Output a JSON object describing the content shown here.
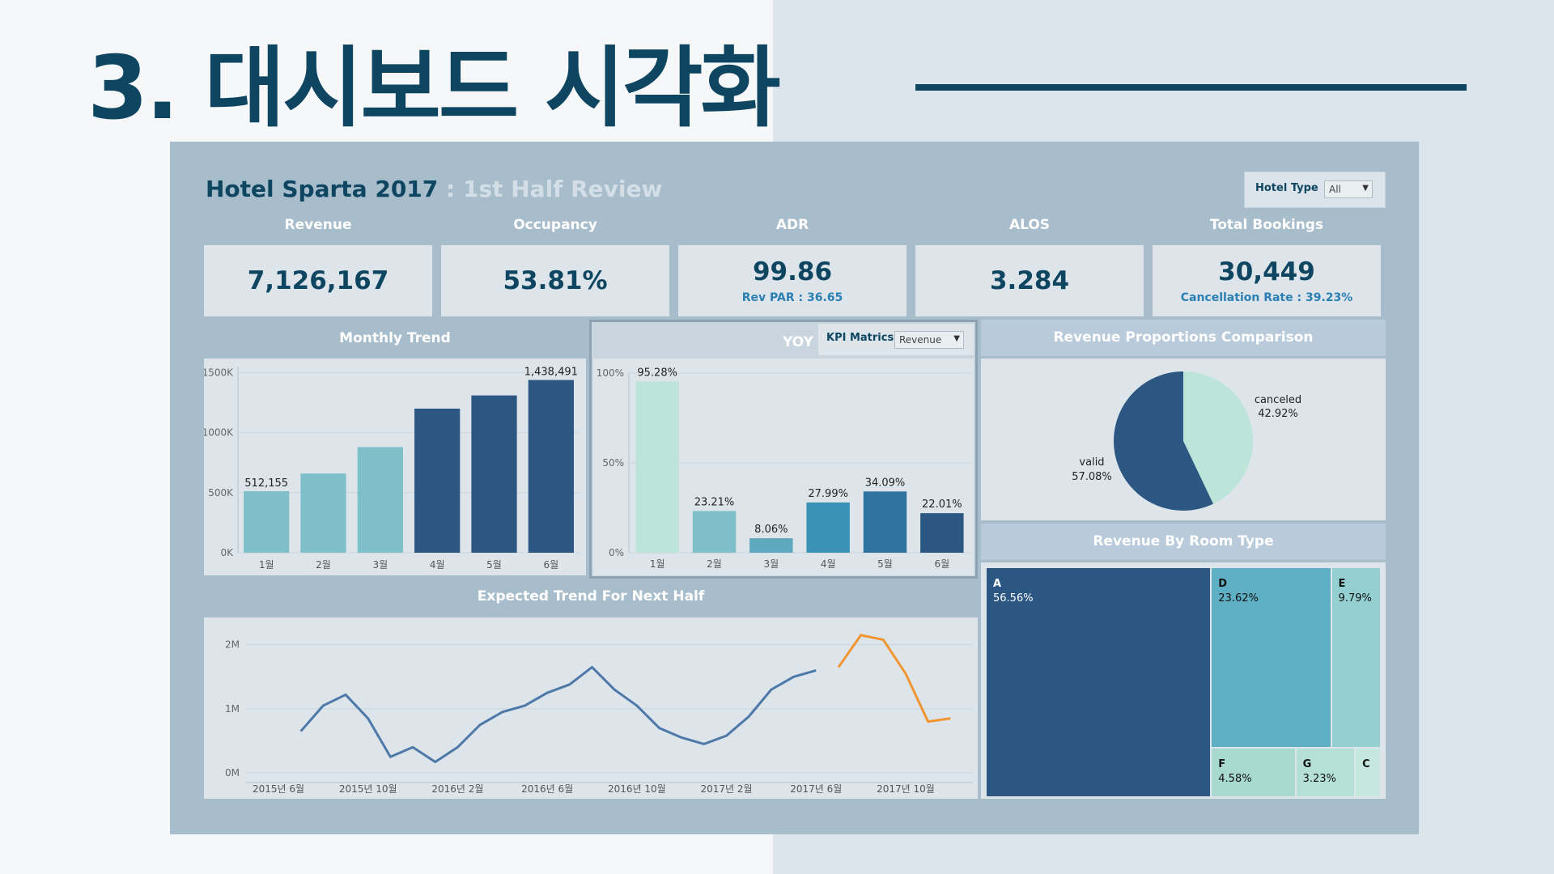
{
  "slide": {
    "title": "3. 대시보드 시각화"
  },
  "dashboard": {
    "title": "Hotel Sparta 2017",
    "subtitle": ": 1st Half  Review",
    "filter": {
      "label": "Hotel Type",
      "value": "All"
    },
    "kpis": [
      {
        "label": "Revenue",
        "value": "7,126,167",
        "note": ""
      },
      {
        "label": "Occupancy",
        "value": "53.81%",
        "note": ""
      },
      {
        "label": "ADR",
        "value": "99.86",
        "note": "Rev PAR : 36.65"
      },
      {
        "label": "ALOS",
        "value": "3.284",
        "note": ""
      },
      {
        "label": "Total  Bookings",
        "value": "30,449",
        "note": "Cancellation Rate : 39.23%"
      }
    ],
    "panels": {
      "monthly": "Monthly Trend",
      "yoy": "YOY",
      "kpi_matrics_label": "KPI Matrics",
      "kpi_matrics_value": "Revenue",
      "proportions": "Revenue Proportions Comparison",
      "room_type": "Revenue By Room Type",
      "expected": "Expected Trend For Next Half"
    }
  },
  "colors": {
    "navy": "#0e4560",
    "bar_light": "#7fbfca",
    "bar_dark": "#2c5783",
    "orange": "#f0952f",
    "line": "#4d78a8",
    "mint": "#bde4d8"
  },
  "chart_data": [
    {
      "type": "bar",
      "title": "Monthly Trend",
      "categories": [
        "1월",
        "2월",
        "3월",
        "4월",
        "5월",
        "6월"
      ],
      "values": [
        512155,
        660000,
        880000,
        1200000,
        1310000,
        1438491
      ],
      "value_labels": [
        "512,155",
        "",
        "",
        "",
        "",
        "1,438,491"
      ],
      "yticks": [
        "0K",
        "500K",
        "1000K",
        "1500K"
      ],
      "ylim": [
        0,
        1550000
      ]
    },
    {
      "type": "bar",
      "title": "YOY",
      "categories": [
        "1월",
        "2월",
        "3월",
        "4월",
        "5월",
        "6월"
      ],
      "values": [
        95.28,
        23.21,
        8.06,
        27.99,
        34.09,
        22.01
      ],
      "value_labels": [
        "95.28%",
        "23.21%",
        "8.06%",
        "27.99%",
        "34.09%",
        "22.01%"
      ],
      "colors": [
        "#bde4d8",
        "#7fbfca",
        "#5ea9bd",
        "#3a93b4",
        "#2f73a0",
        "#2c5783"
      ],
      "yticks": [
        "0%",
        "50%",
        "100%"
      ],
      "ylim": [
        0,
        100
      ]
    },
    {
      "type": "pie",
      "title": "Revenue Proportions Comparison",
      "slices": [
        {
          "name": "canceled",
          "value": 42.92,
          "label": "42.92%",
          "color": "#bde4d8"
        },
        {
          "name": "valid",
          "value": 57.08,
          "label": "57.08%",
          "color": "#2c5783"
        }
      ]
    },
    {
      "type": "treemap",
      "title": "Revenue By Room Type",
      "cells": [
        {
          "name": "A",
          "value": 56.56,
          "label": "56.56%",
          "color": "#2c5783"
        },
        {
          "name": "D",
          "value": 23.62,
          "label": "23.62%",
          "color": "#5eafc4"
        },
        {
          "name": "E",
          "value": 9.79,
          "label": "9.79%",
          "color": "#94d0d2"
        },
        {
          "name": "F",
          "value": 4.58,
          "label": "4.58%",
          "color": "#a8dad2"
        },
        {
          "name": "G",
          "value": 3.23,
          "label": "3.23%",
          "color": "#b4e0d6"
        },
        {
          "name": "C",
          "value": 1.4,
          "label": "",
          "color": "#c4e8dd"
        }
      ]
    },
    {
      "type": "line",
      "title": "Expected Trend For Next Half",
      "xticks": [
        "2015년 6월",
        "2015년 10월",
        "2016년 2월",
        "2016년 6월",
        "2016년 10월",
        "2017년 2월",
        "2017년 6월",
        "2017년 10월"
      ],
      "yticks": [
        "0M",
        "1M",
        "2M"
      ],
      "ylim": [
        0,
        2.3
      ],
      "series": [
        {
          "x": [
            "2015-07",
            "2015-08",
            "2015-09",
            "2015-10",
            "2015-11",
            "2015-12",
            "2016-01",
            "2016-02",
            "2016-03",
            "2016-04",
            "2016-05",
            "2016-06",
            "2016-07",
            "2016-08",
            "2016-09",
            "2016-10",
            "2016-11",
            "2016-12",
            "2017-01",
            "2017-02",
            "2017-03",
            "2017-04",
            "2017-05",
            "2017-06"
          ],
          "values": [
            0.65,
            1.05,
            1.22,
            0.85,
            0.25,
            0.4,
            0.17,
            0.4,
            0.75,
            0.95,
            1.05,
            1.25,
            1.38,
            1.65,
            1.3,
            1.05,
            0.7,
            0.55,
            0.45,
            0.58,
            0.88,
            1.3,
            1.5,
            1.6
          ]
        },
        {
          "x": [
            "2017-07",
            "2017-08",
            "2017-09",
            "2017-10",
            "2017-11",
            "2017-12"
          ],
          "values": [
            1.65,
            2.15,
            2.08,
            1.55,
            0.8,
            0.85
          ]
        }
      ]
    }
  ]
}
